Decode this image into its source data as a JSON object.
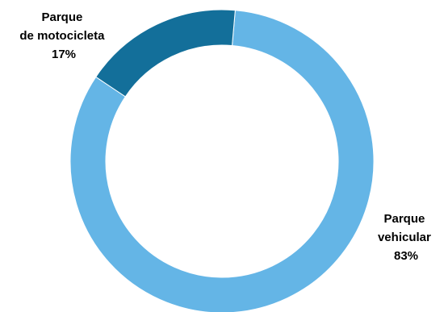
{
  "chart_data": {
    "type": "pie",
    "donut": true,
    "categories": [
      "Parque vehicular",
      "Parque de motocicleta"
    ],
    "values": [
      83,
      17
    ],
    "unit": "%",
    "colors": [
      "#64b5e6",
      "#136f9a"
    ],
    "labels": [
      {
        "slice": "Parque vehicular",
        "lines": [
          "Parque",
          "vehicular",
          "83%"
        ]
      },
      {
        "slice": "Parque de motocicleta",
        "lines": [
          "Parque",
          "de motocicleta",
          "17%"
        ]
      }
    ]
  }
}
